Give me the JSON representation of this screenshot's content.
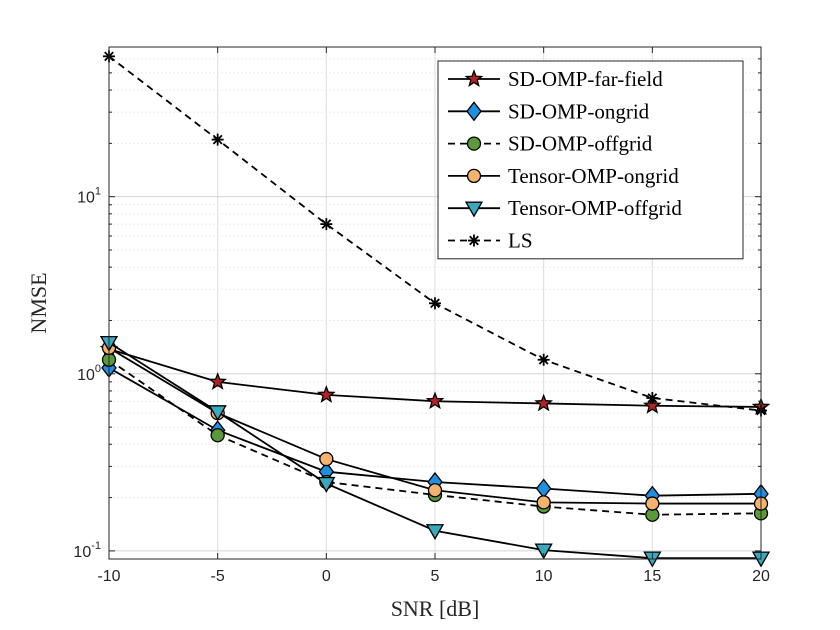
{
  "chart_data": {
    "type": "line",
    "y_scale": "log",
    "xlabel": "SNR [dB]",
    "ylabel": "NMSE",
    "xlim": [
      -10,
      20
    ],
    "ylim": [
      0.09,
      70
    ],
    "grid": true,
    "minor_grid": true,
    "legend_position": "top-right",
    "x_ticks": [
      -10,
      -5,
      0,
      5,
      10,
      15,
      20
    ],
    "x_tick_labels": [
      "-10",
      "-5",
      "0",
      "5",
      "10",
      "15",
      "20"
    ],
    "y_ticks": [
      {
        "value": 0.1,
        "base": "10",
        "exp": "-1"
      },
      {
        "value": 1,
        "base": "10",
        "exp": "0"
      },
      {
        "value": 10,
        "base": "10",
        "exp": "1"
      }
    ],
    "x": [
      -10,
      -5,
      0,
      5,
      10,
      15,
      20
    ],
    "series": [
      {
        "name": "SD-OMP-far-field",
        "values": [
          1.38,
          0.9,
          0.76,
          0.7,
          0.68,
          0.66,
          0.65
        ],
        "marker": "star",
        "fill": "#b22222",
        "dash": "solid"
      },
      {
        "name": "SD-OMP-ongrid",
        "values": [
          1.08,
          0.48,
          0.28,
          0.245,
          0.225,
          0.205,
          0.21
        ],
        "marker": "diamond",
        "fill": "#1f8fe0",
        "dash": "solid"
      },
      {
        "name": "SD-OMP-offgrid",
        "values": [
          1.2,
          0.45,
          0.245,
          0.207,
          0.178,
          0.16,
          0.163
        ],
        "marker": "circle",
        "fill": "#5a9a3a",
        "dash": "dashed"
      },
      {
        "name": "Tensor-OMP-ongrid",
        "values": [
          1.4,
          0.6,
          0.33,
          0.22,
          0.188,
          0.185,
          0.185
        ],
        "marker": "circle",
        "fill": "#f4b36e",
        "dash": "solid"
      },
      {
        "name": "Tensor-OMP-offgrid",
        "values": [
          1.5,
          0.61,
          0.24,
          0.13,
          0.101,
          0.091,
          0.091
        ],
        "marker": "triangle-down",
        "fill": "#3aa9bf",
        "dash": "solid"
      },
      {
        "name": "LS",
        "values": [
          62,
          21,
          7,
          2.5,
          1.2,
          0.73,
          0.62
        ],
        "marker": "asterisk",
        "fill": "none",
        "dash": "dashed"
      }
    ]
  }
}
